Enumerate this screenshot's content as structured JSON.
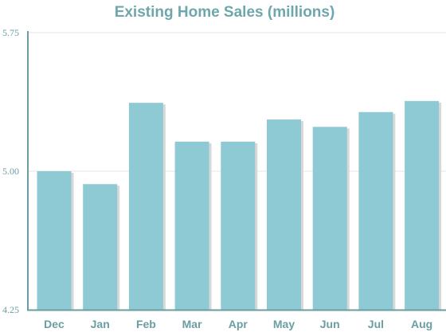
{
  "chart_data": {
    "type": "bar",
    "title": "Existing Home Sales (millions)",
    "categories": [
      "Dec",
      "Jan",
      "Feb",
      "Mar",
      "Apr",
      "May",
      "Jun",
      "Jul",
      "Aug"
    ],
    "values": [
      5.0,
      4.93,
      5.37,
      5.16,
      5.16,
      5.28,
      5.24,
      5.32,
      5.38
    ],
    "ylim": [
      4.25,
      5.75
    ],
    "yticks": [
      "4.25",
      "5.00",
      "5.75"
    ],
    "grid": true,
    "colors": {
      "bar": "#8ecad4",
      "bar_shadow": "#d8d8d8",
      "axis": "#6a9ea2",
      "grid": "#e6e6e6",
      "title": "#6ea7ab"
    }
  }
}
